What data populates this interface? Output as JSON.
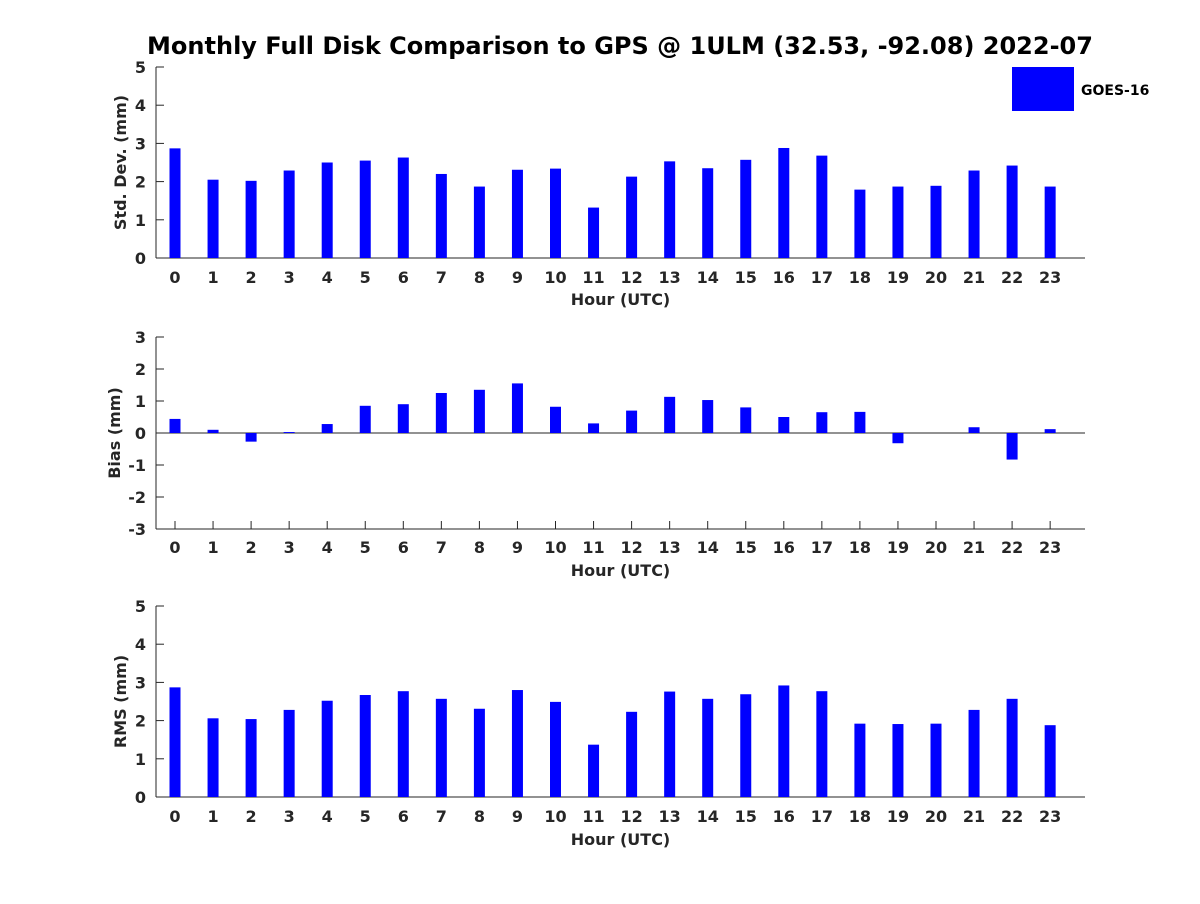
{
  "chart_data": {
    "title": "Monthly Full Disk Comparison to GPS @ 1ULM (32.53, -92.08) 2022-07",
    "legend": {
      "label": "GOES-16",
      "position": "top-right",
      "color": "#0000ff"
    },
    "panels": [
      {
        "type": "bar",
        "xlabel": "Hour (UTC)",
        "ylabel": "Std. Dev. (mm)",
        "ylim": [
          0,
          5
        ],
        "yticks": [
          "0",
          "1",
          "2",
          "3",
          "4",
          "5"
        ],
        "categories": [
          "0",
          "1",
          "2",
          "3",
          "4",
          "5",
          "6",
          "7",
          "8",
          "9",
          "10",
          "11",
          "12",
          "13",
          "14",
          "15",
          "16",
          "17",
          "18",
          "19",
          "20",
          "21",
          "22",
          "23"
        ],
        "series": [
          {
            "name": "GOES-16",
            "values": [
              2.87,
              2.05,
              2.02,
              2.29,
              2.5,
              2.55,
              2.63,
              2.2,
              1.87,
              2.31,
              2.34,
              1.32,
              2.13,
              2.53,
              2.35,
              2.57,
              2.88,
              2.68,
              1.79,
              1.87,
              1.89,
              2.29,
              2.42,
              1.87
            ]
          }
        ]
      },
      {
        "type": "bar",
        "xlabel": "Hour (UTC)",
        "ylabel": "Bias (mm)",
        "ylim": [
          -3,
          3
        ],
        "yticks": [
          "-3",
          "-2",
          "-1",
          "0",
          "1",
          "2",
          "3"
        ],
        "categories": [
          "0",
          "1",
          "2",
          "3",
          "4",
          "5",
          "6",
          "7",
          "8",
          "9",
          "10",
          "11",
          "12",
          "13",
          "14",
          "15",
          "16",
          "17",
          "18",
          "19",
          "20",
          "21",
          "22",
          "23"
        ],
        "series": [
          {
            "name": "GOES-16",
            "values": [
              0.44,
              0.1,
              -0.27,
              0.03,
              0.28,
              0.85,
              0.9,
              1.25,
              1.35,
              1.55,
              0.82,
              0.3,
              0.7,
              1.13,
              1.03,
              0.8,
              0.5,
              0.65,
              0.66,
              -0.32,
              0.0,
              0.18,
              -0.83,
              0.12
            ]
          }
        ]
      },
      {
        "type": "bar",
        "xlabel": "Hour (UTC)",
        "ylabel": "RMS (mm)",
        "ylim": [
          0,
          5
        ],
        "yticks": [
          "0",
          "1",
          "2",
          "3",
          "4",
          "5"
        ],
        "categories": [
          "0",
          "1",
          "2",
          "3",
          "4",
          "5",
          "6",
          "7",
          "8",
          "9",
          "10",
          "11",
          "12",
          "13",
          "14",
          "15",
          "16",
          "17",
          "18",
          "19",
          "20",
          "21",
          "22",
          "23"
        ],
        "series": [
          {
            "name": "GOES-16",
            "values": [
              2.87,
              2.06,
              2.04,
              2.28,
              2.52,
              2.67,
              2.77,
              2.57,
              2.31,
              2.8,
              2.49,
              1.37,
              2.23,
              2.76,
              2.57,
              2.69,
              2.92,
              2.77,
              1.92,
              1.91,
              1.92,
              2.28,
              2.57,
              1.88
            ]
          }
        ]
      }
    ]
  }
}
